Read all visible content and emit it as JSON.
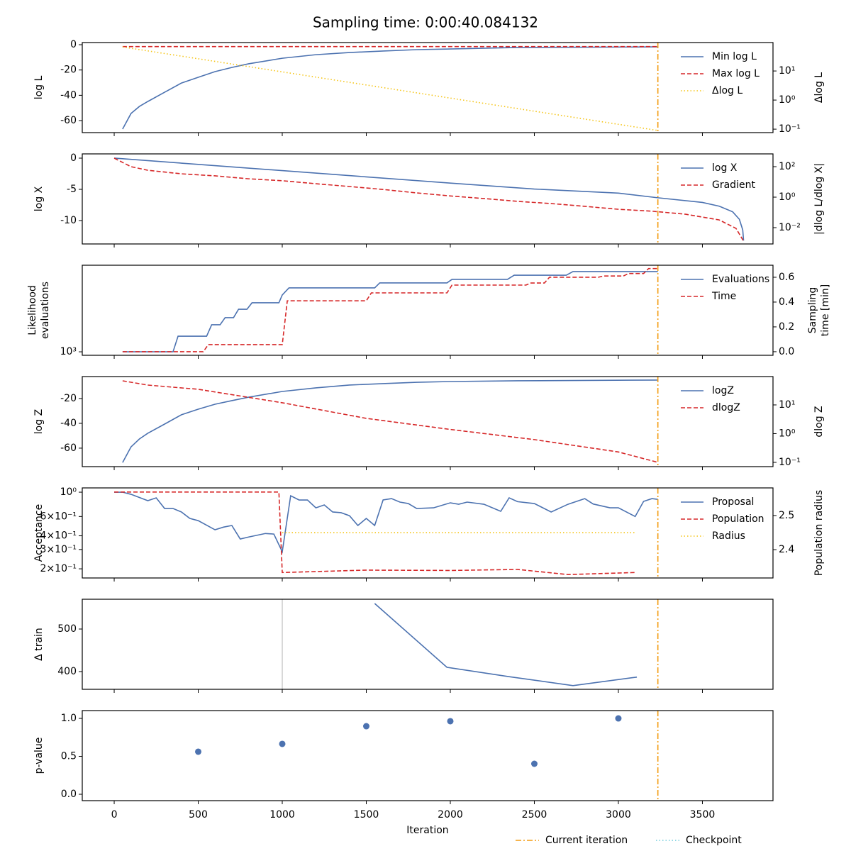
{
  "title": "Sampling time: 0:00:40.084132",
  "current_iteration": 3235,
  "figure_legend": [
    {
      "name": "Current iteration",
      "color": "#f39c12",
      "style": "dashdot"
    },
    {
      "name": "Checkpoint",
      "color": "#6fcbdc",
      "style": "dotted"
    }
  ],
  "chart_data": [
    {
      "type": "line",
      "ylabel": "log L",
      "y2label": "Δlog L",
      "ylim": [
        -69.5,
        1.7
      ],
      "yticks": [
        0,
        -20,
        -40,
        -60
      ],
      "y2scale": "log",
      "y2lim": [
        0.076,
        95
      ],
      "y2ticks": [
        {
          "value": 10,
          "label": "10¹"
        },
        {
          "value": 1,
          "label": "10⁰"
        },
        {
          "value": 0.1,
          "label": "10⁻¹"
        }
      ],
      "legend": "upper right",
      "series": [
        {
          "name": "Min log L",
          "color": "#4c72b0",
          "style": "solid",
          "x": [
            50,
            100,
            150,
            200,
            300,
            400,
            500,
            600,
            700,
            800,
            1000,
            1200,
            1400,
            1600,
            1800,
            2000,
            2400,
            2800,
            3235
          ],
          "values": [
            -66.7,
            -54.4,
            -48.8,
            -44.9,
            -37.6,
            -30.3,
            -25.8,
            -21.3,
            -18,
            -15.1,
            -10.7,
            -7.9,
            -6.2,
            -5,
            -3.9,
            -3.4,
            -2.2,
            -2,
            -1.7
          ]
        },
        {
          "name": "Max log L",
          "color": "#d62728",
          "style": "dashed",
          "x": [
            50,
            3235
          ],
          "values": [
            -1.5,
            -1.5
          ]
        },
        {
          "name": "Δlog L",
          "color": "#f5c518",
          "style": "dotted",
          "axis": "y2",
          "x": [
            50,
            3235
          ],
          "values": [
            67,
            0.09
          ]
        }
      ]
    },
    {
      "type": "line",
      "ylabel": "log X",
      "y2label": "|dlog L/dlog X|",
      "ylim": [
        -13.75,
        0.68
      ],
      "yticks": [
        0,
        -5,
        -10
      ],
      "y2scale": "log",
      "y2lim": [
        0.00085,
        690
      ],
      "y2ticks": [
        {
          "value": 100,
          "label": "10²"
        },
        {
          "value": 1,
          "label": "10⁰"
        },
        {
          "value": 0.01,
          "label": "10⁻²"
        }
      ],
      "legend": "upper right",
      "series": [
        {
          "name": "log X",
          "color": "#4c72b0",
          "style": "solid",
          "x": [
            0,
            500,
            1000,
            1500,
            2000,
            2500,
            3000,
            3235,
            3500,
            3600,
            3680,
            3720,
            3740,
            3745
          ],
          "values": [
            0,
            -1,
            -2,
            -3,
            -4,
            -4.95,
            -5.6,
            -6.35,
            -7.1,
            -7.7,
            -8.6,
            -9.8,
            -11.5,
            -13.2
          ]
        },
        {
          "name": "Gradient",
          "color": "#d62728",
          "style": "dashed",
          "axis": "y2",
          "x": [
            0,
            100,
            200,
            400,
            600,
            800,
            1000,
            1200,
            1400,
            1600,
            1800,
            2000,
            2200,
            2400,
            2600,
            2800,
            3000,
            3200,
            3400,
            3600,
            3700,
            3745
          ],
          "values": [
            360,
            100,
            58,
            34,
            25,
            16,
            12,
            7.6,
            5,
            3.2,
            1.9,
            1.2,
            0.81,
            0.53,
            0.38,
            0.25,
            0.16,
            0.12,
            0.076,
            0.032,
            0.0089,
            0.0013
          ]
        }
      ]
    },
    {
      "type": "line",
      "ylabel": [
        "Likelihood",
        "evaluations"
      ],
      "y2label": [
        "Sampling",
        "time [min]"
      ],
      "yscale": "log",
      "ylim": [
        912,
        9800
      ],
      "yticks": [
        {
          "value": 1000,
          "label": "10³"
        }
      ],
      "y2lim": [
        -0.029,
        0.697
      ],
      "y2ticks": [
        {
          "value": 0,
          "label": "0.0"
        },
        0.2,
        0.4,
        0.6
      ],
      "legend": "upper right",
      "series": [
        {
          "name": "Evaluations",
          "color": "#4c72b0",
          "style": "solid",
          "x": [
            50,
            350,
            380,
            550,
            580,
            630,
            660,
            710,
            740,
            790,
            820,
            980,
            1000,
            1040,
            1550,
            1580,
            1980,
            2010,
            2340,
            2380,
            2690,
            2730,
            3235
          ],
          "values": [
            1000,
            1000,
            1510,
            1510,
            2040,
            2040,
            2460,
            2460,
            3070,
            3070,
            3640,
            3640,
            4470,
            5390,
            5390,
            6150,
            6150,
            6750,
            6750,
            7540,
            7540,
            8300,
            8300
          ]
        },
        {
          "name": "Time",
          "color": "#d62728",
          "style": "dashed",
          "axis": "y2",
          "x": [
            50,
            530,
            560,
            1000,
            1030,
            1500,
            1530,
            1980,
            2010,
            2450,
            2480,
            2560,
            2590,
            2880,
            2910,
            3030,
            3060,
            3150,
            3180,
            3235
          ],
          "values": [
            0,
            0,
            0.057,
            0.057,
            0.41,
            0.41,
            0.474,
            0.474,
            0.537,
            0.537,
            0.554,
            0.554,
            0.6,
            0.6,
            0.61,
            0.61,
            0.63,
            0.63,
            0.67,
            0.67
          ]
        }
      ]
    },
    {
      "type": "line",
      "ylabel": "log Z",
      "y2label": "dlog Z",
      "ylim": [
        -74.9,
        -2.3
      ],
      "yticks": [
        -20,
        -40,
        -60
      ],
      "y2scale": "log",
      "y2lim": [
        0.071,
        97
      ],
      "y2ticks": [
        {
          "value": 10,
          "label": "10¹"
        },
        {
          "value": 1,
          "label": "10⁰"
        },
        {
          "value": 0.1,
          "label": "10⁻¹"
        }
      ],
      "legend": "upper right",
      "series": [
        {
          "name": "logZ",
          "color": "#4c72b0",
          "style": "solid",
          "x": [
            50,
            100,
            150,
            200,
            300,
            400,
            500,
            600,
            700,
            800,
            1000,
            1200,
            1400,
            1600,
            1800,
            2000,
            2400,
            3235
          ],
          "values": [
            -71.6,
            -59,
            -52.6,
            -48,
            -40.6,
            -33.1,
            -28.6,
            -24.6,
            -21.7,
            -18.9,
            -14.3,
            -11.4,
            -9.1,
            -8,
            -6.9,
            -6.3,
            -5.7,
            -5.1
          ]
        },
        {
          "name": "dlogZ",
          "color": "#d62728",
          "style": "dashed",
          "axis": "y2",
          "x": [
            50,
            200,
            500,
            1000,
            1500,
            2000,
            2500,
            3000,
            3235
          ],
          "values": [
            69,
            49,
            35,
            11.9,
            3.4,
            1.4,
            0.62,
            0.23,
            0.1
          ]
        }
      ]
    },
    {
      "type": "line",
      "ylabel": "Acceptance",
      "y2label": "Population radius",
      "yscale": "log",
      "ylim": [
        0.165,
        1.094
      ],
      "yticks": [
        {
          "value": 1,
          "label": "10⁰"
        },
        {
          "value": 0.6,
          "label": "6×10⁻¹"
        },
        {
          "value": 0.4,
          "label": "4×10⁻¹"
        },
        {
          "value": 0.3,
          "label": "3×10⁻¹"
        },
        {
          "value": 0.2,
          "label": "2×10⁻¹"
        }
      ],
      "y2lim": [
        2.317,
        2.581
      ],
      "y2ticks": [
        2.4,
        2.5
      ],
      "legend": "upper right",
      "series": [
        {
          "name": "Proposal",
          "color": "#4c72b0",
          "style": "solid",
          "x": [
            0,
            50,
            100,
            200,
            250,
            300,
            350,
            400,
            450,
            500,
            600,
            650,
            700,
            750,
            800,
            900,
            950,
            1000,
            1050,
            1100,
            1150,
            1200,
            1250,
            1300,
            1350,
            1400,
            1450,
            1500,
            1550,
            1600,
            1650,
            1700,
            1750,
            1800,
            1900,
            2000,
            2050,
            2100,
            2200,
            2300,
            2350,
            2400,
            2500,
            2600,
            2700,
            2800,
            2850,
            2950,
            3000,
            3100,
            3150,
            3200,
            3235
          ],
          "values": [
            1.0,
            1.0,
            0.956,
            0.836,
            0.888,
            0.71,
            0.71,
            0.66,
            0.576,
            0.55,
            0.454,
            0.48,
            0.497,
            0.374,
            0.39,
            0.42,
            0.415,
            0.286,
            0.928,
            0.849,
            0.849,
            0.72,
            0.765,
            0.66,
            0.65,
            0.61,
            0.497,
            0.576,
            0.497,
            0.849,
            0.874,
            0.812,
            0.788,
            0.71,
            0.72,
            0.8,
            0.776,
            0.812,
            0.776,
            0.669,
            0.888,
            0.82,
            0.788,
            0.66,
            0.776,
            0.874,
            0.78,
            0.72,
            0.72,
            0.6,
            0.824,
            0.874,
            0.86
          ]
        },
        {
          "name": "Population",
          "color": "#d62728",
          "style": "dashed",
          "axis": "y2",
          "x": [
            0,
            980,
            1000,
            1500,
            2000,
            2400,
            2700,
            3100
          ],
          "values": [
            2.569,
            2.569,
            2.333,
            2.34,
            2.339,
            2.342,
            2.327,
            2.333
          ]
        },
        {
          "name": "Radius",
          "color": "#f5c518",
          "style": "dotted",
          "axis": "y2",
          "x": [
            1000,
            3100
          ],
          "values": [
            2.45,
            2.45
          ]
        }
      ]
    },
    {
      "type": "line",
      "ylabel": "Δ train",
      "ylim": [
        358.3,
        570
      ],
      "yticks": [
        400,
        500
      ],
      "marker_x": 1000,
      "series": [
        {
          "color": "#4c72b0",
          "style": "solid",
          "x": [
            1550,
            1980,
            2350,
            2730,
            3110
          ],
          "values": [
            560,
            410,
            388,
            367,
            387
          ]
        }
      ]
    },
    {
      "type": "scatter",
      "ylabel": "p-value",
      "ylim": [
        -0.084,
        1.103
      ],
      "yticks": [
        {
          "value": 0,
          "label": "0.0"
        },
        0.5,
        {
          "value": 1,
          "label": "1.0"
        }
      ],
      "xlabel": "Iteration",
      "xlim": [
        -190,
        3920
      ],
      "xticks": [
        0,
        500,
        1000,
        1500,
        2000,
        2500,
        3000,
        3500
      ],
      "series": [
        {
          "color": "#4c72b0",
          "x": [
            500,
            1000,
            1500,
            2000,
            2500,
            3000
          ],
          "values": [
            0.561,
            0.664,
            0.897,
            0.963,
            0.402,
            1.0
          ]
        }
      ]
    }
  ]
}
